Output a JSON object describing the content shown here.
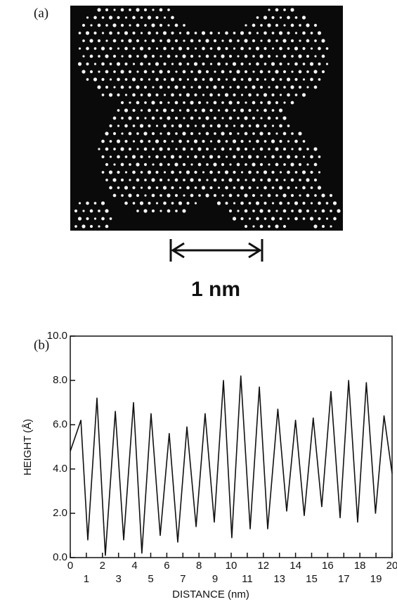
{
  "figure": {
    "panel_a_label": "(a)",
    "scale_bar_label": "1 nm",
    "panel_b_label": "(b)"
  },
  "chart_data": {
    "type": "line",
    "xlabel": "DISTANCE (nm)",
    "ylabel": "HEIGHT (Å)",
    "x": [
      0,
      0.66,
      1.09,
      1.66,
      2.18,
      2.8,
      3.32,
      3.93,
      4.45,
      5.02,
      5.59,
      6.15,
      6.68,
      7.25,
      7.82,
      8.38,
      8.95,
      9.52,
      10.04,
      10.6,
      11.18,
      11.75,
      12.27,
      12.9,
      13.45,
      14.0,
      14.54,
      15.1,
      15.63,
      16.2,
      16.77,
      17.3,
      17.86,
      18.4,
      18.97,
      19.5,
      20
    ],
    "series": [
      {
        "color": "#111111",
        "values": [
          4.8,
          6.2,
          0.8,
          7.2,
          0.1,
          6.6,
          0.8,
          7.0,
          0.2,
          6.5,
          1.0,
          5.6,
          0.7,
          5.9,
          1.4,
          6.5,
          1.6,
          8.0,
          0.9,
          8.2,
          1.3,
          7.7,
          1.3,
          6.7,
          2.1,
          6.2,
          1.9,
          6.3,
          2.3,
          7.5,
          1.8,
          8.0,
          1.6,
          7.9,
          2.0,
          6.4,
          3.8
        ]
      }
    ],
    "xlim": [
      0,
      20
    ],
    "ylim": [
      0,
      10
    ],
    "xticks": [
      0,
      1,
      2,
      3,
      4,
      5,
      6,
      7,
      8,
      9,
      10,
      11,
      12,
      13,
      14,
      15,
      16,
      17,
      18,
      19,
      20
    ],
    "yticks": [
      {
        "value": 0,
        "label": "0.0"
      },
      {
        "value": 2,
        "label": "2.0"
      },
      {
        "value": 4,
        "label": "4.0"
      },
      {
        "value": 6,
        "label": "6.0"
      },
      {
        "value": 8,
        "label": "8.0"
      },
      {
        "value": 10,
        "label": "10.0"
      }
    ]
  }
}
